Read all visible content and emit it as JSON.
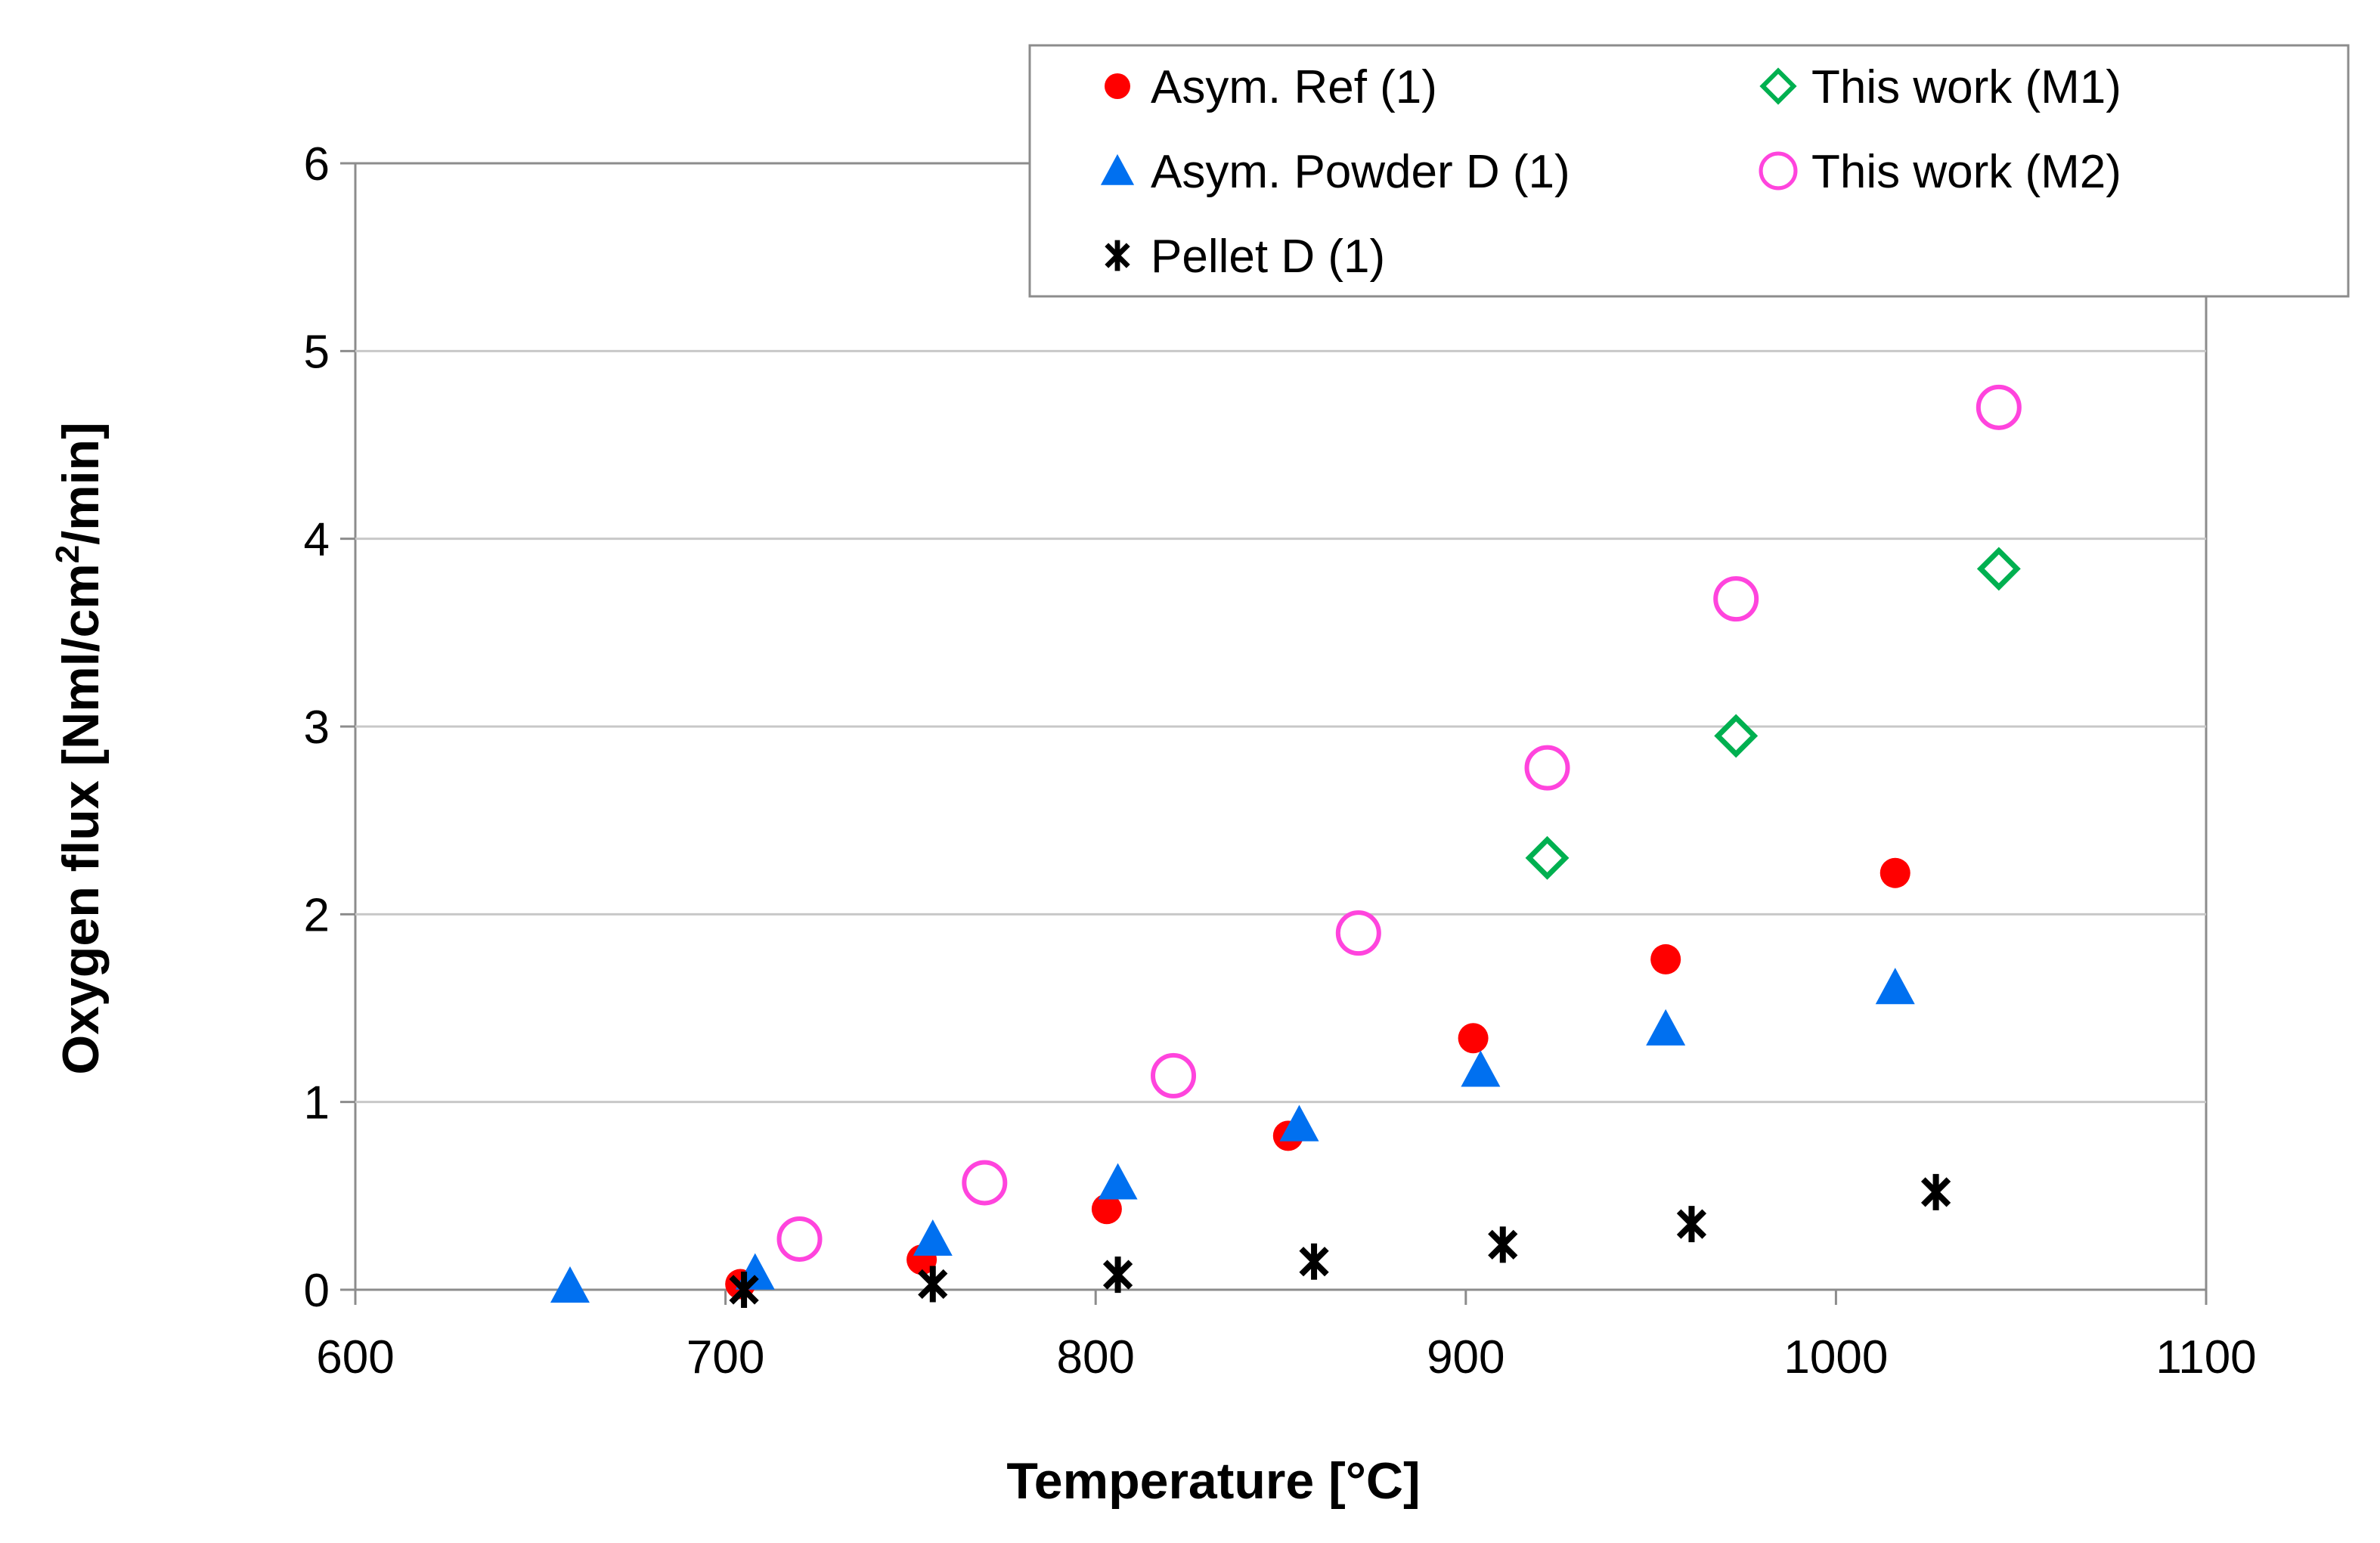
{
  "chart_data": {
    "type": "scatter",
    "title": "",
    "xlabel": "Temperature [°C]",
    "ylabel_main": "Oxygen flux [Nml/cm",
    "ylabel_sup": "2",
    "ylabel_tail": "/min]",
    "xlim": [
      600,
      1100
    ],
    "ylim": [
      0,
      6
    ],
    "xticks": [
      600,
      700,
      800,
      900,
      1000,
      1100
    ],
    "yticks": [
      0,
      1,
      2,
      3,
      4,
      5,
      6
    ],
    "grid": "horizontal",
    "legend_position": "top-right",
    "series": [
      {
        "name": "Asym. Ref (1)",
        "marker": "filled-circle",
        "color": "#ff0000",
        "points": [
          [
            704,
            0.03
          ],
          [
            753,
            0.16
          ],
          [
            803,
            0.43
          ],
          [
            852,
            0.82
          ],
          [
            902,
            1.34
          ],
          [
            954,
            1.76
          ],
          [
            1016,
            2.22
          ]
        ]
      },
      {
        "name": "Asym. Powder D (1)",
        "marker": "filled-triangle",
        "color": "#0070f0",
        "points": [
          [
            658,
            0.02
          ],
          [
            708,
            0.09
          ],
          [
            756,
            0.27
          ],
          [
            806,
            0.57
          ],
          [
            855,
            0.88
          ],
          [
            904,
            1.17
          ],
          [
            954,
            1.39
          ],
          [
            1016,
            1.61
          ]
        ]
      },
      {
        "name": "Pellet D (1)",
        "marker": "asterisk",
        "color": "#000000",
        "points": [
          [
            705,
            0.0
          ],
          [
            756,
            0.03
          ],
          [
            806,
            0.08
          ],
          [
            859,
            0.15
          ],
          [
            910,
            0.24
          ],
          [
            961,
            0.35
          ],
          [
            1027,
            0.52
          ]
        ]
      },
      {
        "name": "This work (M1)",
        "marker": "open-diamond",
        "color": "#00b050",
        "points": [
          [
            922,
            2.3
          ],
          [
            973,
            2.95
          ],
          [
            1044,
            3.84
          ]
        ]
      },
      {
        "name": "This work (M2)",
        "marker": "open-circle",
        "color": "#ff44dd",
        "points": [
          [
            720,
            0.27
          ],
          [
            770,
            0.57
          ],
          [
            821,
            1.14
          ],
          [
            871,
            1.9
          ],
          [
            922,
            2.78
          ],
          [
            973,
            3.68
          ],
          [
            1044,
            4.7
          ]
        ]
      }
    ]
  }
}
